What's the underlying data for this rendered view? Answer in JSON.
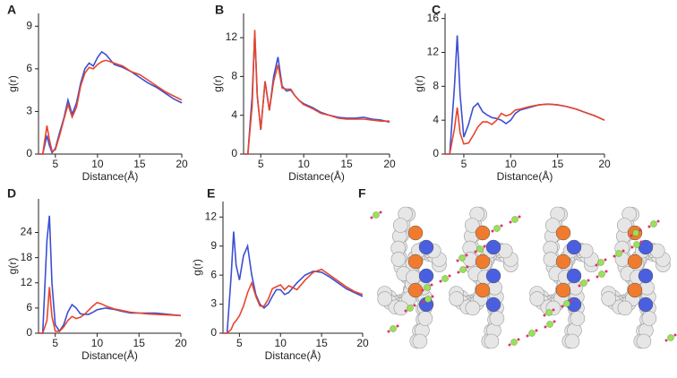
{
  "chart_data": [
    {
      "type": "line",
      "panel": "A",
      "xlabel": "Distance(Å)",
      "ylabel": "g(r)",
      "x": [
        3,
        3.5,
        4,
        4.3,
        4.6,
        5,
        5.5,
        6,
        6.5,
        7,
        7.5,
        8,
        8.5,
        9,
        9.5,
        10,
        10.5,
        11,
        12,
        13,
        14,
        15,
        16,
        17,
        18,
        19,
        20
      ],
      "xlim": [
        3,
        20
      ],
      "xticks": [
        5,
        10,
        15,
        20
      ],
      "ylim": [
        0,
        9.9
      ],
      "yticks": [
        0,
        3,
        6,
        9
      ],
      "series": [
        {
          "color": "#3b4fd4",
          "values": [
            0,
            0,
            1.3,
            0.6,
            0.1,
            0.4,
            1.5,
            2.5,
            3.8,
            2.8,
            3.6,
            5,
            6,
            6.4,
            6.2,
            6.8,
            7.2,
            7.0,
            6.3,
            6.1,
            5.8,
            5.4,
            5.0,
            4.7,
            4.3,
            3.9,
            3.6
          ]
        },
        {
          "color": "#e8452c",
          "values": [
            0,
            0,
            2.0,
            1.0,
            0.2,
            0.3,
            1.3,
            2.4,
            3.5,
            2.6,
            3.3,
            4.8,
            5.7,
            6.1,
            6.0,
            6.3,
            6.5,
            6.6,
            6.4,
            6.2,
            5.8,
            5.6,
            5.2,
            4.8,
            4.4,
            4.1,
            3.8
          ]
        }
      ]
    },
    {
      "type": "line",
      "panel": "B",
      "xlabel": "Distance(Å)",
      "ylabel": "g(r)",
      "x": [
        3,
        3.5,
        4,
        4.3,
        4.6,
        5,
        5.5,
        6,
        6.5,
        7,
        7.5,
        8,
        8.5,
        9,
        9.5,
        10,
        10.5,
        11,
        12,
        13,
        14,
        15,
        16,
        17,
        18,
        19,
        20
      ],
      "xlim": [
        3,
        20
      ],
      "xticks": [
        5,
        10,
        15,
        20
      ],
      "ylim": [
        0,
        14.5
      ],
      "yticks": [
        0,
        4,
        8,
        12
      ],
      "series": [
        {
          "color": "#3b4fd4",
          "values": [
            0,
            0,
            6,
            12.5,
            6,
            2.5,
            7.5,
            4.5,
            8,
            10,
            7,
            6.5,
            6.6,
            6,
            5.5,
            5.2,
            5,
            4.8,
            4.3,
            4,
            3.8,
            3.7,
            3.7,
            3.8,
            3.6,
            3.5,
            3.3
          ]
        },
        {
          "color": "#e8452c",
          "values": [
            0,
            0,
            5,
            12.8,
            6,
            2.5,
            7.5,
            4.5,
            7.5,
            9.2,
            6.8,
            6.7,
            6.7,
            6,
            5.5,
            5.1,
            4.9,
            4.7,
            4.2,
            4,
            3.7,
            3.6,
            3.6,
            3.6,
            3.5,
            3.4,
            3.4
          ]
        }
      ]
    },
    {
      "type": "line",
      "panel": "C",
      "xlabel": "Distance(Å)",
      "ylabel": "g(r)",
      "x": [
        3,
        3.5,
        4,
        4.3,
        4.6,
        5,
        5.5,
        6,
        6.5,
        7,
        7.5,
        8,
        8.5,
        9,
        9.5,
        10,
        10.5,
        11,
        12,
        13,
        14,
        15,
        16,
        17,
        18,
        19,
        20
      ],
      "xlim": [
        3,
        20
      ],
      "xticks": [
        5,
        10,
        15,
        20
      ],
      "ylim": [
        0,
        16.6
      ],
      "yticks": [
        0,
        4,
        8,
        12,
        16
      ],
      "series": [
        {
          "color": "#3b4fd4",
          "values": [
            0,
            0,
            8,
            14,
            7,
            2,
            3.5,
            5.5,
            6,
            5,
            4.6,
            4.3,
            4.2,
            4,
            3.6,
            4,
            4.8,
            5.2,
            5.5,
            5.8,
            5.9,
            5.8,
            5.6,
            5.3,
            4.9,
            4.5,
            4.0
          ]
        },
        {
          "color": "#e8452c",
          "values": [
            0,
            0,
            3,
            5.5,
            2.5,
            1.2,
            1.3,
            2.2,
            3.2,
            3.8,
            3.8,
            3.5,
            4,
            4.8,
            4.5,
            4.7,
            5.2,
            5.3,
            5.6,
            5.8,
            5.9,
            5.8,
            5.6,
            5.3,
            4.9,
            4.5,
            4.0
          ]
        }
      ]
    },
    {
      "type": "line",
      "panel": "D",
      "xlabel": "Distance(Å)",
      "ylabel": "g(r)",
      "x": [
        3,
        3.5,
        4,
        4.3,
        4.6,
        5,
        5.5,
        6,
        6.5,
        7,
        7.5,
        8,
        8.5,
        9,
        9.5,
        10,
        10.5,
        11,
        12,
        13,
        14,
        15,
        16,
        17,
        18,
        19,
        20
      ],
      "xlim": [
        3,
        20
      ],
      "xticks": [
        5,
        10,
        15,
        20
      ],
      "ylim": [
        0,
        32
      ],
      "yticks": [
        0,
        6,
        12,
        18,
        24
      ],
      "series": [
        {
          "color": "#3b4fd4",
          "values": [
            0,
            0,
            22,
            28,
            12,
            2,
            0.5,
            2,
            5,
            6.8,
            6,
            4.6,
            4.5,
            4.5,
            5,
            5.6,
            5.8,
            6,
            5.7,
            5.2,
            4.8,
            4.8,
            4.8,
            4.8,
            4.6,
            4.4,
            4.2
          ]
        },
        {
          "color": "#e8452c",
          "values": [
            0,
            0,
            3,
            11,
            4,
            0.5,
            0.4,
            1.5,
            3,
            4,
            3.5,
            3.8,
            4.5,
            5.5,
            6.5,
            7.3,
            7,
            6.5,
            5.8,
            5.4,
            5.0,
            4.8,
            4.6,
            4.5,
            4.4,
            4.3,
            4.2
          ]
        }
      ]
    },
    {
      "type": "line",
      "panel": "E",
      "xlabel": "Distance(Å)",
      "ylabel": "g(r)",
      "x": [
        3,
        3.5,
        4,
        4.3,
        4.6,
        5,
        5.5,
        6,
        6.5,
        7,
        7.5,
        8,
        8.5,
        9,
        9.5,
        10,
        10.5,
        11,
        12,
        13,
        14,
        15,
        16,
        17,
        18,
        19,
        20
      ],
      "xlim": [
        3,
        20
      ],
      "xticks": [
        5,
        10,
        15,
        20
      ],
      "ylim": [
        0,
        13.6
      ],
      "yticks": [
        0,
        3,
        6,
        9,
        12
      ],
      "series": [
        {
          "color": "#3b4fd4",
          "values": [
            0,
            0,
            6,
            10.5,
            7,
            5.5,
            8,
            9,
            6,
            4,
            3,
            2.6,
            3,
            3.8,
            4.5,
            4.5,
            4,
            4.2,
            5.2,
            6,
            6.4,
            6.3,
            5.8,
            5.2,
            4.6,
            4.2,
            3.8
          ]
        },
        {
          "color": "#e8452c",
          "values": [
            0,
            0,
            0.4,
            1,
            1.3,
            1.8,
            2.8,
            4.2,
            5.2,
            3.8,
            2.8,
            2.8,
            3.5,
            4.6,
            4.8,
            5,
            4.5,
            4.9,
            4.5,
            5.5,
            6.3,
            6.6,
            6.0,
            5.4,
            4.8,
            4.3,
            4.0
          ]
        }
      ]
    },
    {
      "type": "image",
      "panel": "F"
    }
  ]
}
